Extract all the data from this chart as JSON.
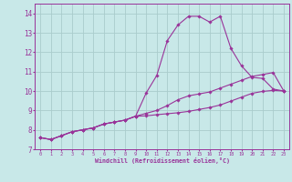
{
  "xlabel": "Windchill (Refroidissement éolien,°C)",
  "x_values": [
    0,
    1,
    2,
    3,
    4,
    5,
    6,
    7,
    8,
    9,
    10,
    11,
    12,
    13,
    14,
    15,
    16,
    17,
    18,
    19,
    20,
    21,
    22,
    23
  ],
  "line1": [
    7.6,
    7.5,
    7.7,
    7.9,
    8.0,
    8.1,
    8.3,
    8.4,
    8.5,
    8.7,
    9.9,
    10.8,
    12.6,
    13.4,
    13.85,
    13.85,
    13.55,
    13.85,
    12.2,
    11.3,
    10.7,
    10.65,
    10.1,
    10.0
  ],
  "line2": [
    7.6,
    7.5,
    7.7,
    7.9,
    8.0,
    8.1,
    8.3,
    8.4,
    8.5,
    8.7,
    8.85,
    9.0,
    9.25,
    9.55,
    9.75,
    9.85,
    9.95,
    10.15,
    10.35,
    10.55,
    10.75,
    10.85,
    10.95,
    10.0
  ],
  "line3": [
    7.6,
    7.5,
    7.7,
    7.9,
    8.0,
    8.1,
    8.3,
    8.4,
    8.5,
    8.7,
    8.72,
    8.78,
    8.83,
    8.88,
    8.95,
    9.05,
    9.15,
    9.28,
    9.48,
    9.68,
    9.88,
    9.98,
    10.03,
    10.0
  ],
  "line_color": "#993399",
  "bg_color": "#c8e8e8",
  "grid_color": "#aacccc",
  "ylim": [
    7.0,
    14.5
  ],
  "yticks": [
    7,
    8,
    9,
    10,
    11,
    12,
    13,
    14
  ],
  "xlim": [
    -0.5,
    23.5
  ]
}
